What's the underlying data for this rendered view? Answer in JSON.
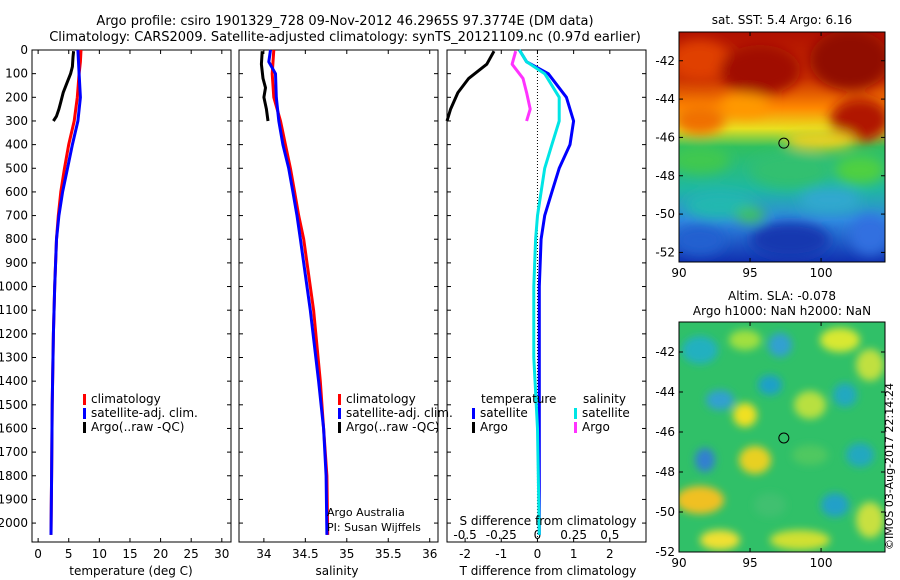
{
  "header": {
    "line1": "Argo profile: csiro 1901329_728 09-Nov-2012 46.2965S 97.3774E (DM data)",
    "line2": "Climatology: CARS2009. Satellite-adjusted climatology: synTS_20121109.nc (0.97d earlier)"
  },
  "colors": {
    "climatology": "#ff0000",
    "satellite": "#0000ff",
    "argo": "#000000",
    "satellite_salinity": "#00e5e5",
    "argo_salinity": "#ff33ff"
  },
  "chart_data": [
    {
      "id": "temperature",
      "type": "line",
      "xlabel": "temperature (deg C)",
      "ylabel": "",
      "xlim": [
        -1,
        31.5
      ],
      "ylim": [
        2080,
        0
      ],
      "xticks": [
        "0",
        "5",
        "10",
        "15",
        "20",
        "25",
        "30"
      ],
      "yticks": [
        "0",
        "100",
        "200",
        "300",
        "400",
        "500",
        "600",
        "700",
        "800",
        "900",
        "1000",
        "1100",
        "1200",
        "1300",
        "1400",
        "1500",
        "1600",
        "1700",
        "1800",
        "1900",
        "2000"
      ],
      "legend": [
        "climatology",
        "satellite-adj. clim.",
        "Argo(..raw -QC)"
      ],
      "legend_position": "lower-right",
      "series": [
        {
          "name": "climatology",
          "color": "#ff0000",
          "x": [
            7.0,
            6.9,
            6.7,
            6.4,
            5.9,
            5.0,
            4.3,
            3.7,
            3.3,
            3.0,
            2.7,
            2.5,
            2.3,
            2.2,
            2.1
          ],
          "y": [
            0,
            50,
            100,
            200,
            300,
            400,
            500,
            600,
            700,
            800,
            1000,
            1200,
            1500,
            1800,
            2050
          ]
        },
        {
          "name": "satellite-adj. clim.",
          "color": "#0000ff",
          "x": [
            6.5,
            6.6,
            6.7,
            6.9,
            6.5,
            5.6,
            4.8,
            4.0,
            3.4,
            3.0,
            2.7,
            2.5,
            2.3,
            2.2,
            2.1
          ],
          "y": [
            0,
            50,
            100,
            200,
            300,
            400,
            500,
            600,
            700,
            800,
            1000,
            1200,
            1500,
            1800,
            2050
          ]
        },
        {
          "name": "Argo(..raw -QC)",
          "color": "#000000",
          "x": [
            5.8,
            5.7,
            5.6,
            5.3,
            4.7,
            4.1,
            3.7,
            3.4,
            3.0,
            2.5
          ],
          "y": [
            5,
            30,
            70,
            100,
            140,
            180,
            220,
            250,
            280,
            300
          ]
        }
      ]
    },
    {
      "id": "salinity",
      "type": "line",
      "xlabel": "salinity",
      "ylabel": "",
      "xlim": [
        33.7,
        36.1
      ],
      "ylim": [
        2080,
        0
      ],
      "xticks": [
        "34",
        "34.5",
        "35",
        "35.5",
        "36"
      ],
      "legend": [
        "climatology",
        "satellite-adj. clim.",
        "Argo(..raw -QC)"
      ],
      "legend_position": "lower-right",
      "annotation": [
        "Argo Australia",
        "PI: Susan Wijffels"
      ],
      "series": [
        {
          "name": "climatology",
          "color": "#ff0000",
          "x": [
            34.12,
            34.11,
            34.1,
            34.12,
            34.2,
            34.26,
            34.32,
            34.37,
            34.42,
            34.48,
            34.52,
            34.6,
            34.68,
            34.72,
            34.76,
            34.77
          ],
          "y": [
            0,
            50,
            100,
            200,
            300,
            400,
            500,
            600,
            700,
            800,
            900,
            1100,
            1400,
            1600,
            1800,
            2050
          ]
        },
        {
          "name": "satellite-adj. clim.",
          "color": "#0000ff",
          "x": [
            34.08,
            34.06,
            34.14,
            34.15,
            34.18,
            34.23,
            34.3,
            34.35,
            34.4,
            34.44,
            34.48,
            34.56,
            34.66,
            34.72,
            34.75,
            34.76
          ],
          "y": [
            0,
            50,
            100,
            200,
            300,
            400,
            500,
            600,
            700,
            800,
            900,
            1100,
            1400,
            1600,
            1800,
            2050
          ]
        },
        {
          "name": "Argo(..raw -QC)",
          "color": "#000000",
          "x": [
            33.98,
            33.97,
            33.99,
            34.02,
            34.0,
            34.03,
            34.05
          ],
          "y": [
            5,
            60,
            120,
            160,
            200,
            250,
            300
          ]
        }
      ]
    },
    {
      "id": "difference",
      "type": "line",
      "xlabel": "T difference from climatology",
      "x2label": "S difference from climatology",
      "xlim": [
        -2.5,
        3
      ],
      "ylim": [
        2080,
        0
      ],
      "xticks": [
        "-2",
        "-1",
        "0",
        "1",
        "2"
      ],
      "x2ticks": [
        "-0.5",
        "-0.25",
        "0",
        "0.25",
        "0.5"
      ],
      "legend_groups": [
        {
          "title": "temperature",
          "items": [
            "satellite",
            "Argo"
          ]
        },
        {
          "title": "salinity",
          "items": [
            "satellite",
            "Argo"
          ]
        }
      ],
      "legend_position": "lower-center",
      "series": [
        {
          "name": "temperature satellite",
          "color": "#0000ff",
          "x": [
            -0.5,
            -0.3,
            0.3,
            0.8,
            1.0,
            0.9,
            0.6,
            0.4,
            0.2,
            0.1,
            0.05,
            0.05
          ],
          "y": [
            0,
            50,
            100,
            200,
            300,
            400,
            500,
            600,
            700,
            800,
            1000,
            2050
          ]
        },
        {
          "name": "temperature Argo",
          "color": "#000000",
          "x": [
            -1.2,
            -1.4,
            -1.9,
            -2.2,
            -2.4,
            -2.5
          ],
          "y": [
            5,
            60,
            120,
            180,
            250,
            300
          ]
        },
        {
          "name": "salinity satellite",
          "color": "#00e5e5",
          "x": [
            -0.5,
            -0.3,
            0.2,
            0.6,
            0.6,
            0.4,
            0.2,
            0.1,
            0.0,
            -0.05,
            -0.1,
            -0.1,
            0.0,
            0.05
          ],
          "y": [
            0,
            50,
            100,
            200,
            300,
            400,
            500,
            600,
            700,
            800,
            1000,
            1300,
            1600,
            2050
          ]
        },
        {
          "name": "salinity Argo",
          "color": "#ff33ff",
          "x": [
            -0.6,
            -0.7,
            -0.4,
            -0.3,
            -0.2,
            -0.3
          ],
          "y": [
            5,
            60,
            120,
            180,
            250,
            300
          ]
        }
      ]
    },
    {
      "id": "sst-map",
      "type": "heatmap",
      "title": "sat. SST: 5.4 Argo: 6.16",
      "xlim": [
        90,
        104.5
      ],
      "ylim": [
        -52.5,
        -40.5
      ],
      "xticks": [
        "90",
        "95",
        "100"
      ],
      "yticks": [
        "-42",
        "-44",
        "-46",
        "-48",
        "-50",
        "-52"
      ],
      "marker": {
        "lon": 97.38,
        "lat": -46.3
      }
    },
    {
      "id": "sla-map",
      "type": "heatmap",
      "title_lines": [
        "Altim. SLA: -0.078",
        "Argo h1000: NaN h2000: NaN"
      ],
      "xlim": [
        90,
        104.5
      ],
      "ylim": [
        -52,
        -40.5
      ],
      "xticks": [
        "90",
        "95",
        "100"
      ],
      "yticks": [
        "-42",
        "-44",
        "-46",
        "-48",
        "-50",
        "-52"
      ],
      "marker": {
        "lon": 97.38,
        "lat": -46.3
      }
    }
  ],
  "footer": {
    "stamp": "©IMOS 03-Aug-2017 22:14:24"
  }
}
